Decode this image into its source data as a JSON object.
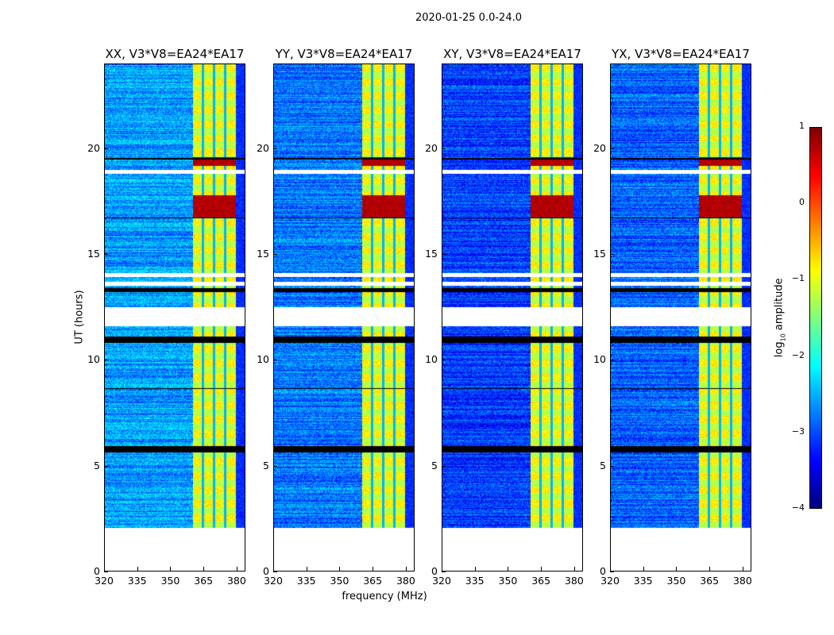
{
  "chart_data": {
    "type": "heatmap",
    "title": "2020-01-25 0.0-24.0",
    "xlabel": "frequency (MHz)",
    "ylabel": "UT (hours)",
    "colorbar_label": "log10 amplitude",
    "colorbar_label_main": "log",
    "colorbar_label_sub": "10",
    "colorbar_label_rest": " amplitude",
    "colormap": "jet",
    "clim": [
      -4,
      1
    ],
    "colorbar_ticks": [
      "1",
      "0",
      "−1",
      "−2",
      "−3",
      "−4"
    ],
    "xlim": [
      320,
      384
    ],
    "ylim": [
      0,
      24
    ],
    "xticks": [
      "320",
      "335",
      "350",
      "365",
      "380"
    ],
    "yticks": [
      "0",
      "5",
      "10",
      "15",
      "20"
    ],
    "data_start_hour": 2.05,
    "rfi_band_mhz": [
      360.4,
      380
    ],
    "rfi_gaps_mhz": [
      365,
      370,
      375
    ],
    "flagged_white_hours": [
      [
        11.6,
        12.5
      ],
      [
        18.8,
        19.0
      ],
      [
        13.9,
        14.1
      ],
      [
        13.5,
        13.7
      ]
    ],
    "flagged_black_hours": [
      [
        5.6,
        5.9
      ],
      [
        10.8,
        11.1
      ],
      [
        13.2,
        13.4
      ],
      [
        19.5,
        19.55
      ],
      [
        16.7,
        16.75
      ],
      [
        8.6,
        8.65
      ]
    ],
    "high_hours": [
      [
        16.7,
        17.8
      ],
      [
        19.2,
        19.6
      ]
    ],
    "panels": [
      {
        "title": "XX, V3*V8=EA24*EA17",
        "base": -2.6
      },
      {
        "title": "YY, V3*V8=EA24*EA17",
        "base": -2.8
      },
      {
        "title": "XY, V3*V8=EA24*EA17",
        "base": -3.1
      },
      {
        "title": "YX, V3*V8=EA24*EA17",
        "base": -2.9
      }
    ]
  }
}
